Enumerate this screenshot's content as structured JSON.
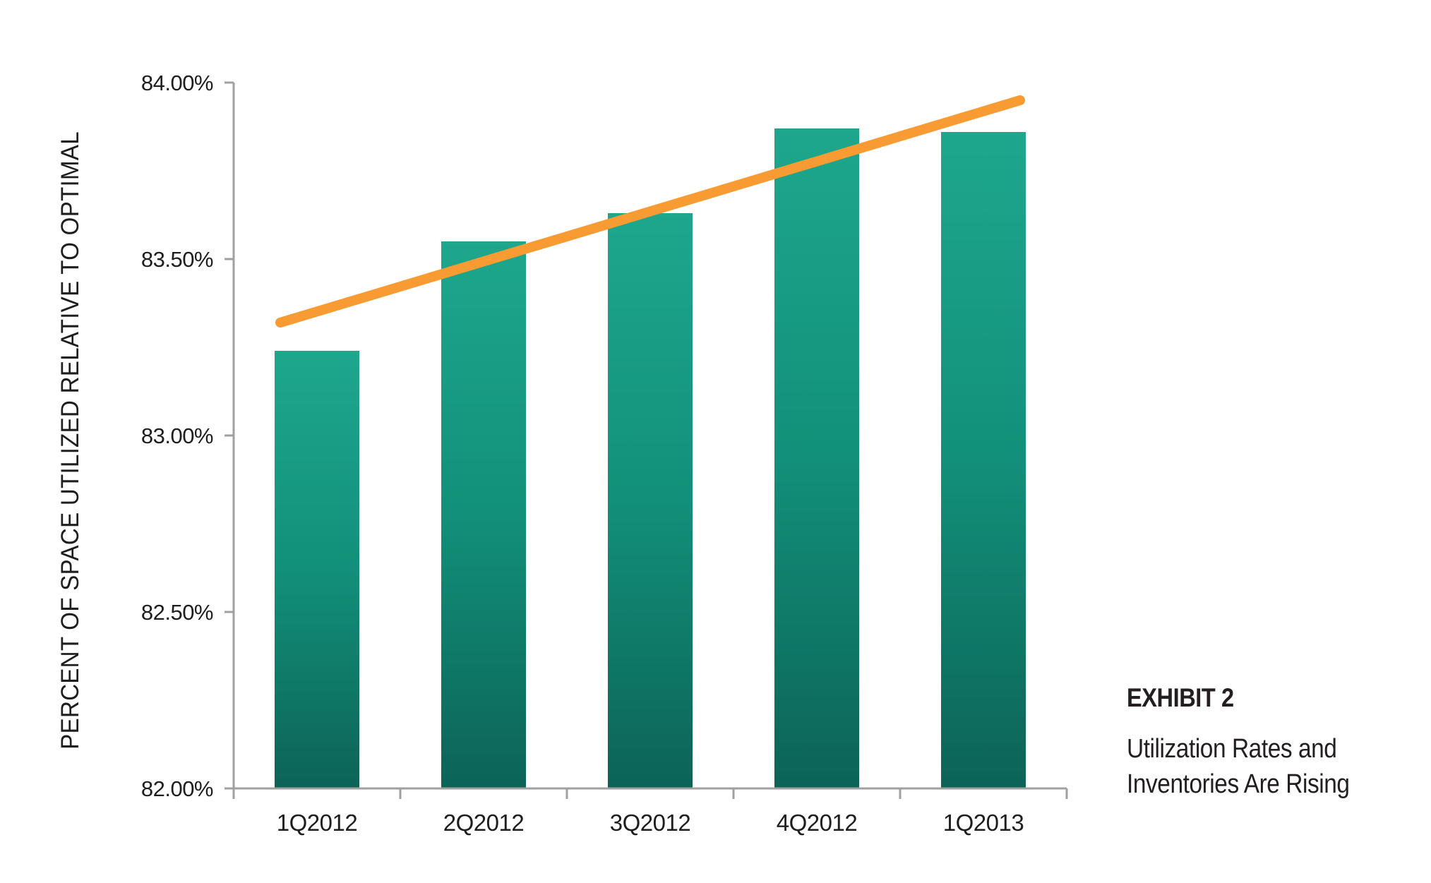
{
  "chart_data": {
    "type": "bar",
    "title": "",
    "xlabel": "",
    "ylabel": "PERCENT OF SPACE UTILIZED RELATIVE TO OPTIMAL",
    "categories": [
      "1Q2012",
      "2Q2012",
      "3Q2012",
      "4Q2012",
      "1Q2013"
    ],
    "series": [
      {
        "name": "space-utilization-bars",
        "type": "bar",
        "values": [
          83.24,
          83.55,
          83.63,
          83.87,
          83.86
        ]
      },
      {
        "name": "trend-line",
        "type": "line",
        "endpoints": [
          83.32,
          83.95
        ]
      }
    ],
    "ylim": [
      82.0,
      84.0
    ],
    "yticks": [
      {
        "value": 84.0,
        "label": "84.00%"
      },
      {
        "value": 83.5,
        "label": "83.50%"
      },
      {
        "value": 83.0,
        "label": "83.00%"
      },
      {
        "value": 82.5,
        "label": "82.50%"
      },
      {
        "value": 82.0,
        "label": "82.00%"
      }
    ],
    "grid": false,
    "legend": "none"
  },
  "caption": {
    "exhibit_label": "EXHIBIT 2",
    "title_line1": "Utilization Rates and",
    "title_line2": "Inventories Are Rising"
  },
  "colors": {
    "bar_gradient_top": "#1EA78D",
    "bar_gradient_mid": "#129079",
    "bar_gradient_bottom": "#0C6357",
    "trend_line": "#F89B33",
    "axis": "#A0A0A0",
    "text": "#1E1E1E"
  }
}
